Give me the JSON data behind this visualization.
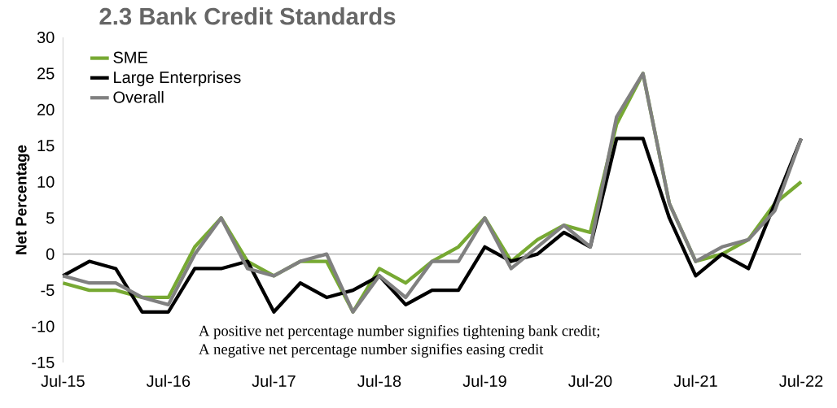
{
  "chart_data": {
    "type": "line",
    "title": "2.3 Bank Credit Standards",
    "ylabel": "Net Percentage",
    "x": [
      "2015-07",
      "2015-10",
      "2016-01",
      "2016-04",
      "2016-07",
      "2016-10",
      "2017-01",
      "2017-04",
      "2017-07",
      "2017-10",
      "2018-01",
      "2018-04",
      "2018-07",
      "2018-10",
      "2019-01",
      "2019-04",
      "2019-07",
      "2019-10",
      "2020-01",
      "2020-04",
      "2020-07",
      "2020-10",
      "2021-01",
      "2021-04",
      "2021-07",
      "2021-10",
      "2022-01",
      "2022-04",
      "2022-07"
    ],
    "series": [
      {
        "name": "SME",
        "color": "#77a933",
        "values": [
          -4,
          -5,
          -5,
          -6,
          -6,
          1,
          5,
          -1,
          -3,
          -1,
          -1,
          -8,
          -2,
          -4,
          -1,
          1,
          5,
          -1,
          2,
          4,
          3,
          18,
          25,
          7,
          -1,
          0,
          2,
          7,
          10
        ]
      },
      {
        "name": "Large Enterprises",
        "color": "#000000",
        "values": [
          -3,
          -1,
          -2,
          -8,
          -8,
          -2,
          -2,
          -1,
          -8,
          -4,
          -6,
          -5,
          -3,
          -7,
          -5,
          -5,
          1,
          -1,
          0,
          3,
          1,
          16,
          16,
          5,
          -3,
          0,
          -2,
          7,
          16
        ]
      },
      {
        "name": "Overall",
        "color": "#808080",
        "values": [
          -3,
          -4,
          -4,
          -6,
          -7,
          0,
          5,
          -2,
          -3,
          -1,
          0,
          -8,
          -3,
          -6,
          -1,
          -1,
          5,
          -2,
          1,
          4,
          1,
          19,
          25,
          7,
          -1,
          1,
          2,
          6,
          16
        ]
      }
    ],
    "xlim": [
      "2015-07",
      "2022-07"
    ],
    "xticks": [
      {
        "value": "2015-07",
        "label": "Jul-15"
      },
      {
        "value": "2016-07",
        "label": "Jul-16"
      },
      {
        "value": "2017-07",
        "label": "Jul-17"
      },
      {
        "value": "2018-07",
        "label": "Jul-18"
      },
      {
        "value": "2019-07",
        "label": "Jul-19"
      },
      {
        "value": "2020-07",
        "label": "Jul-20"
      },
      {
        "value": "2021-07",
        "label": "Jul-21"
      },
      {
        "value": "2022-07",
        "label": "Jul-22"
      }
    ],
    "ylim": [
      -15,
      30
    ],
    "yticks": [
      -15,
      -10,
      -5,
      0,
      5,
      10,
      15,
      20,
      25,
      30
    ],
    "annotations": [
      "A positive net percentage number signifies tightening bank credit;",
      "A negative net percentage number signifies easing credit"
    ],
    "ref_lines": [
      {
        "axis": "y",
        "value": 0,
        "color": "#a6a6a6"
      }
    ],
    "legend": "top left",
    "grid": false,
    "marker": "none",
    "line_style": "solid"
  }
}
